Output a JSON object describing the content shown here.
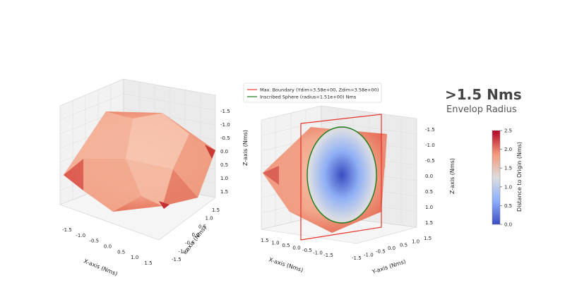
{
  "headline": {
    "value": ">1.5 Nms",
    "subtitle": "Envelop Radius"
  },
  "chart_data": [
    {
      "type": "surface3d",
      "panel": "left",
      "xlabel": "X-axis (Nms)",
      "ylabel": "Y-axis (Nms)",
      "zlabel": "",
      "x_ticks": [
        "-1.5",
        "-1.0",
        "-0.5",
        "0.0",
        "0.5",
        "1.0",
        "1.5"
      ],
      "y_ticks": [
        "-1.5",
        "-1.0",
        "-0.5",
        "0.0",
        "0.5",
        "1.0",
        "1.5"
      ],
      "z_ticks": [
        "-1.5",
        "-1.0",
        "-0.5",
        "0.0",
        "0.5",
        "1.0",
        "1.5"
      ],
      "surface": "momentum envelope polyhedron",
      "colormap": "coolwarm"
    },
    {
      "type": "surface3d",
      "panel": "right",
      "xlabel": "X-axis (Nms)",
      "ylabel": "Y-axis (Nms)",
      "zlabel": "Z-axis (Nms)",
      "x_ticks": [
        "1.5",
        "1.0",
        "0.5",
        "0.0",
        "-0.5",
        "-1.0",
        "-1.5"
      ],
      "y_ticks": [
        "-1.5",
        "-1.0",
        "-0.5",
        "0.0",
        "0.5",
        "1.0",
        "1.5"
      ],
      "z_ticks": [
        "-1.5",
        "-1.0",
        "-0.5",
        "0.0",
        "0.5",
        "1.0",
        "1.5"
      ],
      "legend": [
        {
          "label": "Max. Boundary (Ydim=3.58e+00, Zdim=3.58e+00)",
          "color": "#e8332a"
        },
        {
          "label": "Inscribed Sphere (radius=1.51e+00) Nms",
          "color": "#1a7a1a"
        }
      ],
      "max_boundary": {
        "ydim": 3.58,
        "zdim": 3.58
      },
      "inscribed_sphere_radius": 1.51
    }
  ],
  "colorbar": {
    "label": "Distance to Origin (Nms)",
    "ticks": [
      "0.0",
      "0.5",
      "1.0",
      "1.5",
      "2.0",
      "2.5"
    ],
    "min": 0.0,
    "max": 2.5,
    "colors": [
      "#3b4cc0",
      "#dddddd",
      "#b40426"
    ]
  },
  "z_axis_label_left": "Z-axis (Nms)"
}
